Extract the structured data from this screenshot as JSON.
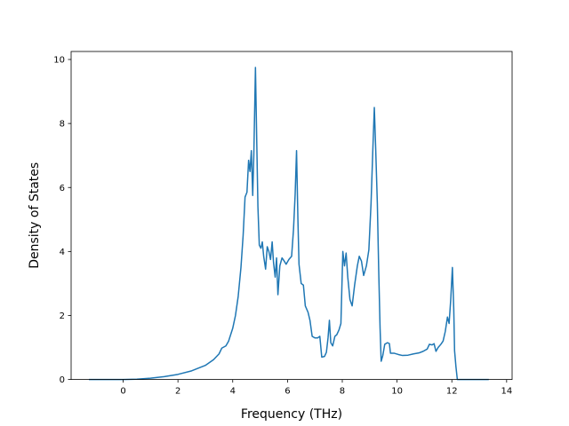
{
  "chart_data": {
    "type": "line",
    "title": "",
    "xlabel": "Frequency (THz)",
    "ylabel": "Density of States",
    "xlim": [
      -1.9,
      14.2
    ],
    "ylim": [
      0,
      10.25
    ],
    "x_ticks": [
      0,
      2,
      4,
      6,
      8,
      10,
      12,
      14
    ],
    "y_ticks": [
      0,
      2,
      4,
      6,
      8,
      10
    ],
    "x_tick_labels": [
      "0",
      "2",
      "4",
      "6",
      "8",
      "10",
      "12",
      "14"
    ],
    "y_tick_labels": [
      "0",
      "2",
      "4",
      "6",
      "8",
      "10"
    ],
    "grid": false,
    "legend": "none",
    "series": [
      {
        "color": "#1f77b4",
        "points": [
          [
            -1.25,
            0.0
          ],
          [
            -0.5,
            0.0
          ],
          [
            0.0,
            0.0
          ],
          [
            0.5,
            0.01
          ],
          [
            1.0,
            0.04
          ],
          [
            1.5,
            0.09
          ],
          [
            2.0,
            0.16
          ],
          [
            2.5,
            0.27
          ],
          [
            3.0,
            0.44
          ],
          [
            3.3,
            0.62
          ],
          [
            3.5,
            0.8
          ],
          [
            3.6,
            0.98
          ],
          [
            3.75,
            1.05
          ],
          [
            3.85,
            1.2
          ],
          [
            4.0,
            1.6
          ],
          [
            4.1,
            2.0
          ],
          [
            4.2,
            2.6
          ],
          [
            4.3,
            3.5
          ],
          [
            4.38,
            4.5
          ],
          [
            4.45,
            5.7
          ],
          [
            4.52,
            5.85
          ],
          [
            4.58,
            6.85
          ],
          [
            4.63,
            6.5
          ],
          [
            4.68,
            7.15
          ],
          [
            4.73,
            5.75
          ],
          [
            4.77,
            7.0
          ],
          [
            4.83,
            9.75
          ],
          [
            4.88,
            7.3
          ],
          [
            4.92,
            5.4
          ],
          [
            4.97,
            4.2
          ],
          [
            5.03,
            4.1
          ],
          [
            5.08,
            4.3
          ],
          [
            5.13,
            3.85
          ],
          [
            5.2,
            3.45
          ],
          [
            5.26,
            4.15
          ],
          [
            5.32,
            4.0
          ],
          [
            5.38,
            3.75
          ],
          [
            5.44,
            4.3
          ],
          [
            5.49,
            3.65
          ],
          [
            5.55,
            3.2
          ],
          [
            5.6,
            3.8
          ],
          [
            5.65,
            2.65
          ],
          [
            5.72,
            3.55
          ],
          [
            5.8,
            3.8
          ],
          [
            5.88,
            3.7
          ],
          [
            5.95,
            3.6
          ],
          [
            6.05,
            3.75
          ],
          [
            6.15,
            3.85
          ],
          [
            6.22,
            4.7
          ],
          [
            6.28,
            5.8
          ],
          [
            6.33,
            7.15
          ],
          [
            6.38,
            5.0
          ],
          [
            6.42,
            3.6
          ],
          [
            6.5,
            3.0
          ],
          [
            6.58,
            2.95
          ],
          [
            6.65,
            2.3
          ],
          [
            6.75,
            2.1
          ],
          [
            6.82,
            1.85
          ],
          [
            6.9,
            1.35
          ],
          [
            7.0,
            1.3
          ],
          [
            7.1,
            1.3
          ],
          [
            7.18,
            1.35
          ],
          [
            7.25,
            0.7
          ],
          [
            7.35,
            0.72
          ],
          [
            7.42,
            0.85
          ],
          [
            7.48,
            1.3
          ],
          [
            7.53,
            1.85
          ],
          [
            7.58,
            1.15
          ],
          [
            7.65,
            1.05
          ],
          [
            7.73,
            1.35
          ],
          [
            7.8,
            1.4
          ],
          [
            7.88,
            1.55
          ],
          [
            7.95,
            1.75
          ],
          [
            8.02,
            4.0
          ],
          [
            8.08,
            3.55
          ],
          [
            8.14,
            3.95
          ],
          [
            8.2,
            3.2
          ],
          [
            8.28,
            2.5
          ],
          [
            8.36,
            2.3
          ],
          [
            8.45,
            2.95
          ],
          [
            8.55,
            3.55
          ],
          [
            8.62,
            3.85
          ],
          [
            8.7,
            3.7
          ],
          [
            8.78,
            3.25
          ],
          [
            8.88,
            3.55
          ],
          [
            8.97,
            4.05
          ],
          [
            9.05,
            5.5
          ],
          [
            9.12,
            7.3
          ],
          [
            9.17,
            8.5
          ],
          [
            9.22,
            7.2
          ],
          [
            9.28,
            5.5
          ],
          [
            9.33,
            3.4
          ],
          [
            9.38,
            1.6
          ],
          [
            9.42,
            0.57
          ],
          [
            9.48,
            0.75
          ],
          [
            9.55,
            1.1
          ],
          [
            9.65,
            1.15
          ],
          [
            9.72,
            1.12
          ],
          [
            9.76,
            0.82
          ],
          [
            9.9,
            0.82
          ],
          [
            10.05,
            0.78
          ],
          [
            10.2,
            0.75
          ],
          [
            10.4,
            0.76
          ],
          [
            10.6,
            0.8
          ],
          [
            10.8,
            0.83
          ],
          [
            10.95,
            0.88
          ],
          [
            11.1,
            0.95
          ],
          [
            11.18,
            1.1
          ],
          [
            11.28,
            1.08
          ],
          [
            11.35,
            1.12
          ],
          [
            11.42,
            0.88
          ],
          [
            11.5,
            1.0
          ],
          [
            11.6,
            1.1
          ],
          [
            11.68,
            1.2
          ],
          [
            11.76,
            1.5
          ],
          [
            11.84,
            1.95
          ],
          [
            11.9,
            1.75
          ],
          [
            11.96,
            2.5
          ],
          [
            12.02,
            3.5
          ],
          [
            12.07,
            2.2
          ],
          [
            12.1,
            0.9
          ],
          [
            12.15,
            0.4
          ],
          [
            12.2,
            0.0
          ],
          [
            12.6,
            0.0
          ],
          [
            13.0,
            0.0
          ],
          [
            13.35,
            0.0
          ]
        ]
      }
    ]
  }
}
